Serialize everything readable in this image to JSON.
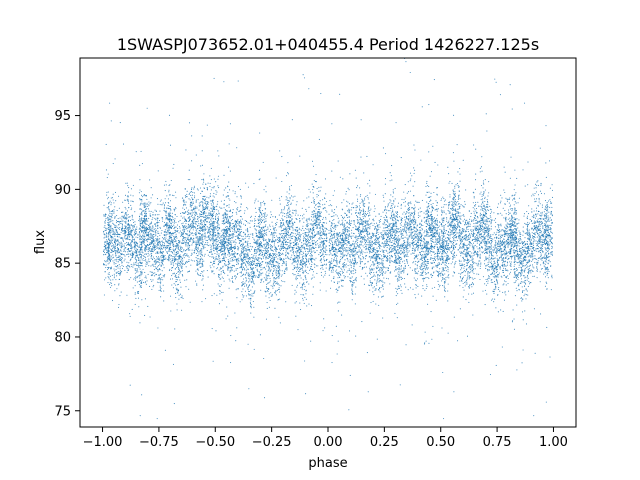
{
  "chart_data": {
    "type": "scatter",
    "title": "1SWASPJ073652.01+040455.4 Period 1426227.125s",
    "xlabel": "phase",
    "ylabel": "flux",
    "xlim": [
      -1.1,
      1.1
    ],
    "ylim": [
      73.9,
      98.9
    ],
    "xticks": [
      -1.0,
      -0.75,
      -0.5,
      -0.25,
      0.0,
      0.25,
      0.5,
      0.75,
      1.0
    ],
    "xtick_labels": [
      "−1.00",
      "−0.75",
      "−0.50",
      "−0.25",
      "0.00",
      "0.25",
      "0.50",
      "0.75",
      "1.00"
    ],
    "yticks": [
      75,
      80,
      85,
      90,
      95
    ],
    "ytick_labels": [
      "75",
      "80",
      "85",
      "90",
      "95"
    ],
    "grid": false,
    "legend": "none",
    "marker_color": "#1f77b4",
    "series": [
      {
        "x": [
          -0.98,
          -0.96,
          -0.93,
          -0.9,
          -0.87,
          -0.84,
          -0.82,
          -0.8,
          -0.77,
          -0.74,
          -0.71,
          -0.69,
          -0.66,
          -0.63,
          -0.6,
          -0.57,
          -0.55,
          -0.52,
          -0.5,
          -0.47,
          -0.45,
          -0.43,
          -0.4,
          -0.37,
          -0.34,
          -0.31,
          -0.29,
          -0.26,
          -0.23,
          -0.2,
          -0.17,
          -0.14,
          -0.11,
          -0.08,
          -0.05,
          -0.02,
          0.02,
          0.05,
          0.08,
          0.11,
          0.14,
          0.17,
          0.2,
          0.23,
          0.26,
          0.29,
          0.31,
          0.34,
          0.37,
          0.4,
          0.43,
          0.45,
          0.47,
          0.5,
          0.52,
          0.55,
          0.57,
          0.6,
          0.63,
          0.66,
          0.69,
          0.71,
          0.74,
          0.77,
          0.8,
          0.82,
          0.84,
          0.87,
          0.9,
          0.93,
          0.96,
          0.98
        ],
        "y": [
          86.3,
          86.8,
          85.9,
          87.1,
          86.5,
          85.2,
          87.4,
          86.9,
          86.1,
          85.7,
          87.2,
          86.4,
          85.5,
          87.0,
          87.8,
          86.2,
          88.1,
          87.5,
          86.9,
          85.8,
          87.3,
          86.1,
          86.7,
          85.4,
          84.6,
          86.0,
          86.8,
          85.6,
          85.1,
          86.4,
          87.3,
          86.0,
          85.3,
          86.2,
          87.6,
          86.5,
          86.1,
          85.8,
          86.7,
          85.5,
          86.9,
          87.2,
          86.0,
          85.3,
          86.6,
          87.1,
          85.9,
          86.4,
          87.3,
          86.2,
          85.6,
          87.4,
          86.8,
          86.1,
          85.7,
          87.2,
          88.0,
          86.3,
          85.5,
          86.9,
          87.7,
          86.6,
          85.0,
          85.8,
          86.4,
          87.1,
          85.6,
          85.2,
          86.3,
          87.0,
          86.5,
          86.9
        ]
      }
    ]
  }
}
